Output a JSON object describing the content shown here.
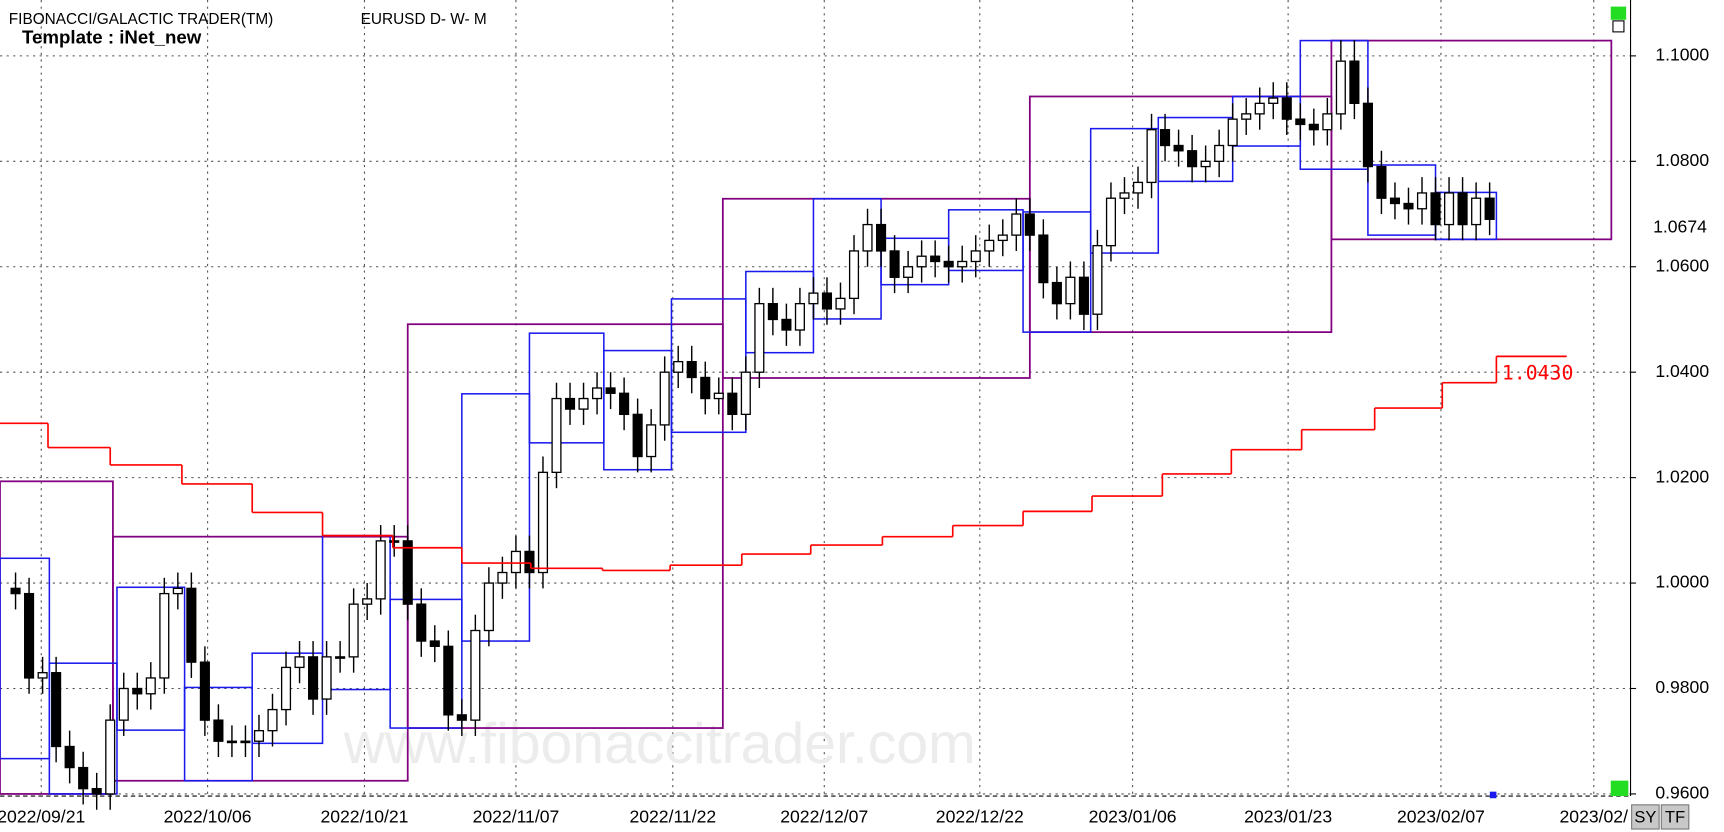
{
  "chart_data": {
    "type": "candlestick",
    "title": "FIBONACCI/GALACTIC TRADER(TM)",
    "symbol": "EURUSD D- W- M",
    "template": "Template : iNet_new",
    "watermark": "www.fibonaccitrader.com",
    "xlim": [
      -1.15,
      119.42
    ],
    "ylim": [
      0.9596,
      1.1106
    ],
    "grid": true,
    "xticks": [
      {
        "value": 1.9,
        "label": "2022/09/21"
      },
      {
        "value": 14.2,
        "label": "2022/10/06"
      },
      {
        "value": 25.8,
        "label": "2022/10/21"
      },
      {
        "value": 37,
        "label": "2022/11/07"
      },
      {
        "value": 48.6,
        "label": "2022/11/22"
      },
      {
        "value": 59.8,
        "label": "2022/12/07"
      },
      {
        "value": 71.3,
        "label": "2022/12/22"
      },
      {
        "value": 82.6,
        "label": "2023/01/06"
      },
      {
        "value": 94.1,
        "label": "2023/01/23"
      },
      {
        "value": 105.4,
        "label": "2023/02/07"
      },
      {
        "value": 116.7,
        "label": "2023/02/"
      }
    ],
    "yticks": [
      {
        "value": 1.1,
        "label": "1.1000"
      },
      {
        "value": 1.08,
        "label": "1.0800"
      },
      {
        "value": 1.06,
        "label": "1.0600"
      },
      {
        "value": 1.04,
        "label": "1.0400"
      },
      {
        "value": 1.02,
        "label": "1.0200"
      },
      {
        "value": 1,
        "label": "1.0000"
      },
      {
        "value": 0.98,
        "label": "0.9800"
      },
      {
        "value": 0.96,
        "label": "0.9600"
      }
    ],
    "last_price": 1.0674,
    "up_color": "#ffffff",
    "down_color": "#000000",
    "ohlc": [
      [
        0.999,
        1.002,
        0.995,
        0.998
      ],
      [
        0.998,
        1.001,
        0.979,
        0.982
      ],
      [
        0.982,
        0.986,
        0.979,
        0.983
      ],
      [
        0.983,
        0.986,
        0.966,
        0.969
      ],
      [
        0.969,
        0.972,
        0.962,
        0.965
      ],
      [
        0.965,
        0.968,
        0.958,
        0.961
      ],
      [
        0.961,
        0.964,
        0.957,
        0.96
      ],
      [
        0.96,
        0.977,
        0.957,
        0.974
      ],
      [
        0.974,
        0.983,
        0.971,
        0.98
      ],
      [
        0.98,
        0.983,
        0.976,
        0.979
      ],
      [
        0.979,
        0.985,
        0.976,
        0.982
      ],
      [
        0.982,
        1.001,
        0.979,
        0.998
      ],
      [
        0.998,
        1.002,
        0.995,
        0.999
      ],
      [
        0.999,
        1.002,
        0.982,
        0.985
      ],
      [
        0.985,
        0.988,
        0.971,
        0.974
      ],
      [
        0.974,
        0.977,
        0.967,
        0.97
      ],
      [
        0.97,
        0.973,
        0.967,
        0.97
      ],
      [
        0.97,
        0.973,
        0.967,
        0.97
      ],
      [
        0.97,
        0.975,
        0.967,
        0.972
      ],
      [
        0.972,
        0.979,
        0.969,
        0.976
      ],
      [
        0.976,
        0.987,
        0.973,
        0.984
      ],
      [
        0.984,
        0.989,
        0.981,
        0.986
      ],
      [
        0.986,
        0.989,
        0.975,
        0.978
      ],
      [
        0.978,
        0.989,
        0.975,
        0.986
      ],
      [
        0.986,
        0.989,
        0.983,
        0.986
      ],
      [
        0.986,
        0.999,
        0.983,
        0.996
      ],
      [
        0.996,
        1.0,
        0.993,
        0.997
      ],
      [
        0.997,
        1.011,
        0.994,
        1.008
      ],
      [
        1.008,
        1.011,
        1.005,
        1.008
      ],
      [
        1.008,
        1.011,
        0.993,
        0.996
      ],
      [
        0.996,
        0.999,
        0.986,
        0.989
      ],
      [
        0.989,
        0.992,
        0.985,
        0.988
      ],
      [
        0.988,
        0.991,
        0.972,
        0.975
      ],
      [
        0.975,
        0.978,
        0.971,
        0.974
      ],
      [
        0.974,
        0.994,
        0.971,
        0.991
      ],
      [
        0.991,
        1.003,
        0.988,
        1.0
      ],
      [
        1.0,
        1.005,
        0.997,
        1.002
      ],
      [
        1.002,
        1.009,
        0.999,
        1.006
      ],
      [
        1.006,
        1.009,
        0.999,
        1.002
      ],
      [
        1.002,
        1.024,
        0.999,
        1.021
      ],
      [
        1.021,
        1.038,
        1.018,
        1.035
      ],
      [
        1.035,
        1.038,
        1.03,
        1.033
      ],
      [
        1.033,
        1.038,
        1.03,
        1.035
      ],
      [
        1.035,
        1.04,
        1.032,
        1.037
      ],
      [
        1.037,
        1.04,
        1.033,
        1.036
      ],
      [
        1.036,
        1.039,
        1.029,
        1.032
      ],
      [
        1.032,
        1.035,
        1.021,
        1.024
      ],
      [
        1.024,
        1.033,
        1.021,
        1.03
      ],
      [
        1.03,
        1.043,
        1.027,
        1.04
      ],
      [
        1.04,
        1.045,
        1.037,
        1.042
      ],
      [
        1.042,
        1.045,
        1.036,
        1.039
      ],
      [
        1.039,
        1.042,
        1.032,
        1.035
      ],
      [
        1.035,
        1.039,
        1.032,
        1.036
      ],
      [
        1.036,
        1.039,
        1.029,
        1.032
      ],
      [
        1.032,
        1.043,
        1.029,
        1.04
      ],
      [
        1.04,
        1.056,
        1.037,
        1.053
      ],
      [
        1.053,
        1.056,
        1.047,
        1.05
      ],
      [
        1.05,
        1.053,
        1.045,
        1.048
      ],
      [
        1.048,
        1.056,
        1.045,
        1.053
      ],
      [
        1.053,
        1.058,
        1.05,
        1.055
      ],
      [
        1.055,
        1.058,
        1.049,
        1.052
      ],
      [
        1.052,
        1.057,
        1.049,
        1.054
      ],
      [
        1.054,
        1.066,
        1.051,
        1.063
      ],
      [
        1.063,
        1.071,
        1.06,
        1.068
      ],
      [
        1.068,
        1.071,
        1.06,
        1.063
      ],
      [
        1.063,
        1.066,
        1.055,
        1.058
      ],
      [
        1.058,
        1.063,
        1.055,
        1.06
      ],
      [
        1.06,
        1.065,
        1.057,
        1.062
      ],
      [
        1.062,
        1.065,
        1.058,
        1.061
      ],
      [
        1.061,
        1.064,
        1.057,
        1.06
      ],
      [
        1.06,
        1.064,
        1.057,
        1.061
      ],
      [
        1.061,
        1.066,
        1.058,
        1.063
      ],
      [
        1.063,
        1.068,
        1.06,
        1.065
      ],
      [
        1.065,
        1.069,
        1.062,
        1.066
      ],
      [
        1.066,
        1.073,
        1.063,
        1.07
      ],
      [
        1.07,
        1.073,
        1.063,
        1.066
      ],
      [
        1.066,
        1.069,
        1.054,
        1.057
      ],
      [
        1.057,
        1.06,
        1.05,
        1.053
      ],
      [
        1.053,
        1.061,
        1.05,
        1.058
      ],
      [
        1.058,
        1.061,
        1.048,
        1.051
      ],
      [
        1.051,
        1.067,
        1.048,
        1.064
      ],
      [
        1.064,
        1.076,
        1.061,
        1.073
      ],
      [
        1.073,
        1.077,
        1.07,
        1.074
      ],
      [
        1.074,
        1.079,
        1.071,
        1.076
      ],
      [
        1.076,
        1.089,
        1.073,
        1.086
      ],
      [
        1.086,
        1.089,
        1.08,
        1.083
      ],
      [
        1.083,
        1.086,
        1.079,
        1.082
      ],
      [
        1.082,
        1.085,
        1.076,
        1.079
      ],
      [
        1.079,
        1.083,
        1.076,
        1.08
      ],
      [
        1.08,
        1.086,
        1.077,
        1.083
      ],
      [
        1.083,
        1.091,
        1.08,
        1.088
      ],
      [
        1.088,
        1.092,
        1.085,
        1.089
      ],
      [
        1.089,
        1.094,
        1.086,
        1.091
      ],
      [
        1.091,
        1.095,
        1.088,
        1.092
      ],
      [
        1.092,
        1.095,
        1.085,
        1.088
      ],
      [
        1.088,
        1.091,
        1.084,
        1.087
      ],
      [
        1.087,
        1.09,
        1.083,
        1.086
      ],
      [
        1.086,
        1.092,
        1.083,
        1.089
      ],
      [
        1.089,
        1.103,
        1.086,
        1.099
      ],
      [
        1.099,
        1.103,
        1.088,
        1.091
      ],
      [
        1.091,
        1.094,
        1.076,
        1.079
      ],
      [
        1.079,
        1.082,
        1.07,
        1.073
      ],
      [
        1.073,
        1.076,
        1.069,
        1.072
      ],
      [
        1.072,
        1.075,
        1.068,
        1.071
      ],
      [
        1.071,
        1.077,
        1.068,
        1.074
      ],
      [
        1.074,
        1.077,
        1.065,
        1.068
      ],
      [
        1.068,
        1.077,
        1.065,
        1.074
      ],
      [
        1.074,
        1.077,
        1.065,
        1.068
      ],
      [
        1.068,
        1.076,
        1.065,
        1.073
      ],
      [
        1.073,
        1.076,
        1.066,
        1.069
      ]
    ],
    "monthly_boxes": {
      "color": "#800080",
      "boxes": [
        {
          "x": [
            -1.15,
            7.2
          ],
          "y": [
            0.96,
            1.0193
          ]
        },
        {
          "x": [
            7.2,
            29
          ],
          "y": [
            0.9625,
            1.0088
          ]
        },
        {
          "x": [
            29,
            52.3
          ],
          "y": [
            0.9725,
            1.0491
          ]
        },
        {
          "x": [
            52.3,
            75
          ],
          "y": [
            1.0389,
            1.0729
          ]
        },
        {
          "x": [
            75,
            97.3
          ],
          "y": [
            1.0476,
            1.0923
          ]
        },
        {
          "x": [
            97.3,
            118
          ],
          " y": null,
          "y": [
            1.0652,
            1.1029
          ]
        }
      ]
    },
    "weekly_boxes": {
      "color": "#1a1aee",
      "boxes": [
        {
          "x": [
            -1.15,
            2.5
          ],
          "y": [
            0.9667,
            1.0047
          ]
        },
        {
          "x": [
            2.5,
            7.5
          ],
          "y": [
            0.96,
            0.9848
          ]
        },
        {
          "x": [
            7.5,
            12.5
          ],
          "y": [
            0.9721,
            0.9992
          ]
        },
        {
          "x": [
            12.5,
            17.5
          ],
          "y": [
            0.9625,
            0.9802
          ]
        },
        {
          "x": [
            17.5,
            22.7
          ],
          "y": [
            0.9696,
            0.9867
          ]
        },
        {
          "x": [
            22.7,
            27.7
          ],
          "y": [
            0.9798,
            1.009
          ]
        },
        {
          "x": [
            27.7,
            33
          ],
          "y": [
            0.9725,
            0.9969
          ]
        },
        {
          "x": [
            33,
            38
          ],
          "y": [
            0.989,
            1.0359
          ]
        },
        {
          "x": [
            38,
            43.5
          ],
          "y": [
            1.0266,
            1.0474
          ]
        },
        {
          "x": [
            43.5,
            48.5
          ],
          "y": [
            1.0215,
            1.0441
          ]
        },
        {
          "x": [
            48.5,
            54
          ],
          "y": [
            1.0286,
            1.0539
          ]
        },
        {
          "x": [
            54,
            59
          ],
          "y": [
            1.0437,
            1.0591
          ]
        },
        {
          "x": [
            59,
            64
          ],
          "y": [
            1.0501,
            1.0729
          ]
        },
        {
          "x": [
            64,
            69
          ],
          "y": [
            1.0566,
            1.0654
          ]
        },
        {
          "x": [
            69,
            74.5
          ],
          "y": [
            1.0593,
            1.0708
          ]
        },
        {
          "x": [
            74.5,
            79.5
          ],
          "y": [
            1.0476,
            1.0704
          ]
        },
        {
          "x": [
            79.5,
            84.5
          ],
          "y": [
            1.0626,
            1.0862
          ]
        },
        {
          "x": [
            84.5,
            90
          ],
          "y": [
            1.0762,
            1.0883
          ]
        },
        {
          "x": [
            90,
            95
          ],
          "y": [
            1.0829,
            1.0923
          ]
        },
        {
          "x": [
            95,
            100
          ],
          "y": [
            1.0785,
            1.1029
          ]
        },
        {
          "x": [
            100,
            105
          ],
          "y": [
            1.066,
            1.0793
          ]
        },
        {
          "x": [
            105,
            109.5
          ],
          "y": [
            1.0652,
            1.0741
          ]
        }
      ]
    },
    "step_line": {
      "color": "#ff0000",
      "end_label": "1.0430",
      "edges": [
        -1.15,
        2.4,
        7,
        12.3,
        17.5,
        22.7,
        27.9,
        33,
        38.1,
        43.4,
        48.4,
        53.7,
        58.8,
        64.1,
        69.3,
        74.5,
        79.6,
        84.8,
        89.9,
        95.1,
        100.5,
        105.5,
        109.5,
        114.7
      ],
      "values": [
        1.0303,
        1.0257,
        1.0224,
        1.0188,
        1.0134,
        1.009,
        1.0067,
        1.0038,
        1.0028,
        1.0024,
        1.0034,
        1.0055,
        1.0072,
        1.0088,
        1.0109,
        1.0136,
        1.0165,
        1.0207,
        1.0253,
        1.0291,
        1.0332,
        1.038,
        1.043
      ]
    }
  },
  "toolbar": {
    "buttons": [
      "SY",
      "TF"
    ]
  }
}
